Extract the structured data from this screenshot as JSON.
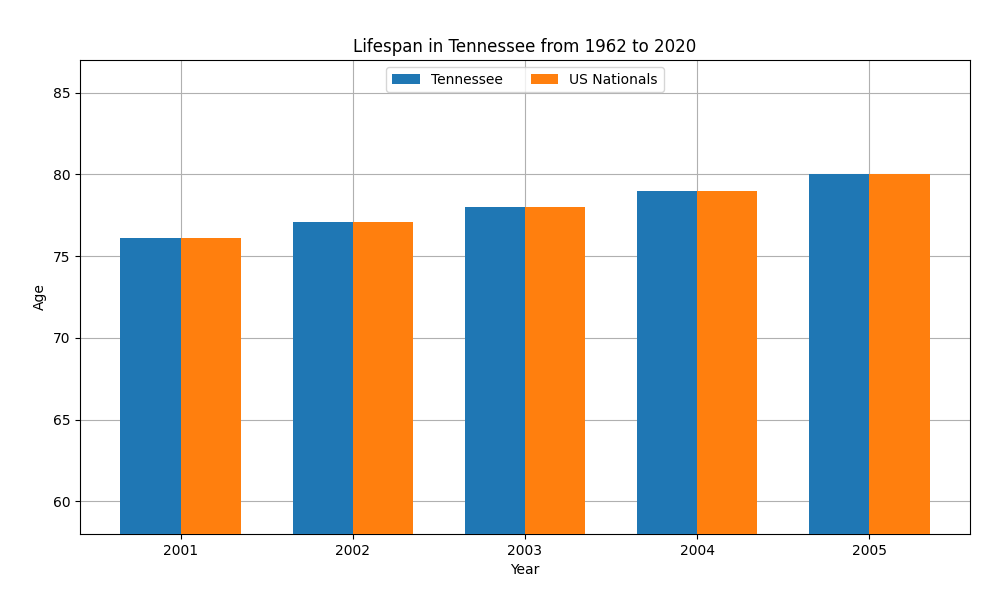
{
  "chart_data": {
    "type": "bar",
    "title": "Lifespan in Tennessee from 1962 to 2020",
    "x_label": "Year",
    "y_label": "Age",
    "categories": [
      "2001",
      "2002",
      "2003",
      "2004",
      "2005"
    ],
    "series": [
      {
        "name": "Tennessee",
        "values": [
          76.1,
          77.1,
          78.0,
          79.0,
          80.0
        ]
      },
      {
        "name": "US Nationals",
        "values": [
          76.1,
          77.1,
          78.0,
          79.0,
          80.0
        ]
      }
    ],
    "ylim": [
      58,
      87
    ],
    "yticks": [
      60,
      65,
      70,
      75,
      80,
      85
    ],
    "grid": true,
    "legend": "upper center"
  }
}
